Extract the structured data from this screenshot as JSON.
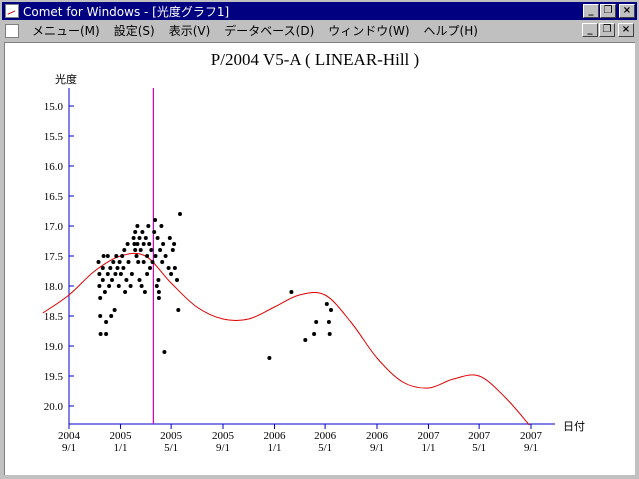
{
  "window": {
    "title": "Comet for Windows - [光度グラフ1]",
    "icon": "app-chart-icon",
    "controls": [
      "minimize",
      "restore",
      "close"
    ]
  },
  "menubar": {
    "doc_icon": "document-chart-icon",
    "items": [
      {
        "label": "メニュー(M)"
      },
      {
        "label": "設定(S)"
      },
      {
        "label": "表示(V)"
      },
      {
        "label": "データベース(D)"
      },
      {
        "label": "ウィンドウ(W)"
      },
      {
        "label": "ヘルプ(H)"
      }
    ]
  },
  "colors": {
    "titlebar": "#000080",
    "curve": "#e00000",
    "marker_line": "#cc00cc",
    "axis": "#0000cc",
    "points": "#000000"
  },
  "chart_data": {
    "type": "scatter",
    "title": "P/2004 V5-A ( LINEAR-Hill )",
    "ylabel": "光度",
    "xlabel": "日付",
    "y_inverted": true,
    "ylim": [
      14.7,
      20.3
    ],
    "y_ticks": [
      "15.0",
      "15.5",
      "16.0",
      "16.5",
      "17.0",
      "17.5",
      "18.0",
      "18.5",
      "19.0",
      "19.5",
      "20.0"
    ],
    "x_tick_dates": [
      "2004-09-01",
      "2005-01-01",
      "2005-05-01",
      "2005-09-01",
      "2006-01-01",
      "2006-05-01",
      "2006-09-01",
      "2007-01-01",
      "2007-05-01",
      "2007-09-01"
    ],
    "x_ticks": [
      {
        "year": "2004",
        "md": "9/1"
      },
      {
        "year": "2005",
        "md": "1/1"
      },
      {
        "year": "2005",
        "md": "5/1"
      },
      {
        "year": "2005",
        "md": "9/1"
      },
      {
        "year": "2006",
        "md": "1/1"
      },
      {
        "year": "2006",
        "md": "5/1"
      },
      {
        "year": "2006",
        "md": "9/1"
      },
      {
        "year": "2007",
        "md": "1/1"
      },
      {
        "year": "2007",
        "md": "5/1"
      },
      {
        "year": "2007",
        "md": "9/1"
      }
    ],
    "marker_date": "2005-03-20",
    "curve": [
      {
        "x": "2004-07-01",
        "y": 18.45
      },
      {
        "x": "2004-09-01",
        "y": 18.15
      },
      {
        "x": "2004-11-01",
        "y": 17.75
      },
      {
        "x": "2005-01-01",
        "y": 17.5
      },
      {
        "x": "2005-03-01",
        "y": 17.5
      },
      {
        "x": "2005-05-01",
        "y": 17.95
      },
      {
        "x": "2005-07-01",
        "y": 18.35
      },
      {
        "x": "2005-09-01",
        "y": 18.55
      },
      {
        "x": "2005-11-01",
        "y": 18.55
      },
      {
        "x": "2006-01-01",
        "y": 18.35
      },
      {
        "x": "2006-03-01",
        "y": 18.15
      },
      {
        "x": "2006-05-01",
        "y": 18.15
      },
      {
        "x": "2006-07-01",
        "y": 18.6
      },
      {
        "x": "2006-09-01",
        "y": 19.2
      },
      {
        "x": "2006-11-01",
        "y": 19.6
      },
      {
        "x": "2007-01-01",
        "y": 19.7
      },
      {
        "x": "2007-03-01",
        "y": 19.55
      },
      {
        "x": "2007-05-01",
        "y": 19.5
      },
      {
        "x": "2007-07-01",
        "y": 19.85
      },
      {
        "x": "2007-09-01",
        "y": 20.35
      }
    ],
    "points": [
      {
        "x": "2004-11-10",
        "y": 17.6
      },
      {
        "x": "2004-11-12",
        "y": 17.8
      },
      {
        "x": "2004-11-12",
        "y": 18.0
      },
      {
        "x": "2004-11-14",
        "y": 18.2
      },
      {
        "x": "2004-11-14",
        "y": 18.5
      },
      {
        "x": "2004-11-15",
        "y": 18.8
      },
      {
        "x": "2004-11-20",
        "y": 17.7
      },
      {
        "x": "2004-11-20",
        "y": 17.9
      },
      {
        "x": "2004-11-22",
        "y": 17.5
      },
      {
        "x": "2004-11-25",
        "y": 18.1
      },
      {
        "x": "2004-11-28",
        "y": 18.8
      },
      {
        "x": "2004-11-28",
        "y": 18.6
      },
      {
        "x": "2004-12-02",
        "y": 17.8
      },
      {
        "x": "2004-12-02",
        "y": 17.5
      },
      {
        "x": "2004-12-05",
        "y": 18.0
      },
      {
        "x": "2004-12-08",
        "y": 17.7
      },
      {
        "x": "2004-12-10",
        "y": 18.5
      },
      {
        "x": "2004-12-12",
        "y": 17.9
      },
      {
        "x": "2004-12-15",
        "y": 17.6
      },
      {
        "x": "2004-12-18",
        "y": 18.4
      },
      {
        "x": "2004-12-20",
        "y": 17.8
      },
      {
        "x": "2004-12-22",
        "y": 17.5
      },
      {
        "x": "2004-12-25",
        "y": 17.7
      },
      {
        "x": "2004-12-28",
        "y": 18.0
      },
      {
        "x": "2004-12-30",
        "y": 17.6
      },
      {
        "x": "2005-01-02",
        "y": 17.8
      },
      {
        "x": "2005-01-05",
        "y": 17.5
      },
      {
        "x": "2005-01-08",
        "y": 17.7
      },
      {
        "x": "2005-01-10",
        "y": 17.4
      },
      {
        "x": "2005-01-12",
        "y": 18.1
      },
      {
        "x": "2005-01-15",
        "y": 17.9
      },
      {
        "x": "2005-01-18",
        "y": 17.3
      },
      {
        "x": "2005-01-20",
        "y": 17.6
      },
      {
        "x": "2005-01-25",
        "y": 18.0
      },
      {
        "x": "2005-01-28",
        "y": 17.8
      },
      {
        "x": "2005-02-01",
        "y": 17.2
      },
      {
        "x": "2005-02-03",
        "y": 17.3
      },
      {
        "x": "2005-02-05",
        "y": 17.1
      },
      {
        "x": "2005-02-05",
        "y": 17.4
      },
      {
        "x": "2005-02-08",
        "y": 17.5
      },
      {
        "x": "2005-02-10",
        "y": 17.0
      },
      {
        "x": "2005-02-10",
        "y": 17.3
      },
      {
        "x": "2005-02-12",
        "y": 17.6
      },
      {
        "x": "2005-02-15",
        "y": 17.2
      },
      {
        "x": "2005-02-15",
        "y": 17.9
      },
      {
        "x": "2005-02-18",
        "y": 17.4
      },
      {
        "x": "2005-02-20",
        "y": 18.0
      },
      {
        "x": "2005-02-22",
        "y": 17.1
      },
      {
        "x": "2005-02-25",
        "y": 17.3
      },
      {
        "x": "2005-02-25",
        "y": 17.6
      },
      {
        "x": "2005-02-28",
        "y": 18.1
      },
      {
        "x": "2005-03-02",
        "y": 17.2
      },
      {
        "x": "2005-03-05",
        "y": 17.5
      },
      {
        "x": "2005-03-05",
        "y": 17.8
      },
      {
        "x": "2005-03-08",
        "y": 17.0
      },
      {
        "x": "2005-03-10",
        "y": 17.3
      },
      {
        "x": "2005-03-12",
        "y": 17.7
      },
      {
        "x": "2005-03-15",
        "y": 17.4
      },
      {
        "x": "2005-03-18",
        "y": 17.6
      },
      {
        "x": "2005-03-22",
        "y": 17.1
      },
      {
        "x": "2005-03-24",
        "y": 16.9
      },
      {
        "x": "2005-03-25",
        "y": 17.5
      },
      {
        "x": "2005-03-28",
        "y": 18.0
      },
      {
        "x": "2005-03-30",
        "y": 17.2
      },
      {
        "x": "2005-04-01",
        "y": 17.9
      },
      {
        "x": "2005-04-02",
        "y": 18.1
      },
      {
        "x": "2005-04-02",
        "y": 18.2
      },
      {
        "x": "2005-04-05",
        "y": 17.4
      },
      {
        "x": "2005-04-08",
        "y": 17.0
      },
      {
        "x": "2005-04-10",
        "y": 17.6
      },
      {
        "x": "2005-04-12",
        "y": 17.3
      },
      {
        "x": "2005-04-15",
        "y": 19.1
      },
      {
        "x": "2005-04-18",
        "y": 17.5
      },
      {
        "x": "2005-04-25",
        "y": 17.7
      },
      {
        "x": "2005-04-28",
        "y": 17.2
      },
      {
        "x": "2005-05-01",
        "y": 17.8
      },
      {
        "x": "2005-05-05",
        "y": 17.4
      },
      {
        "x": "2005-05-08",
        "y": 17.3
      },
      {
        "x": "2005-05-10",
        "y": 17.7
      },
      {
        "x": "2005-05-15",
        "y": 17.9
      },
      {
        "x": "2005-05-18",
        "y": 18.4
      },
      {
        "x": "2005-05-22",
        "y": 16.8
      },
      {
        "x": "2005-12-20",
        "y": 19.2
      },
      {
        "x": "2006-02-10",
        "y": 18.1
      },
      {
        "x": "2006-03-15",
        "y": 18.9
      },
      {
        "x": "2006-04-05",
        "y": 18.8
      },
      {
        "x": "2006-04-10",
        "y": 18.6
      },
      {
        "x": "2006-05-05",
        "y": 18.3
      },
      {
        "x": "2006-05-10",
        "y": 18.6
      },
      {
        "x": "2006-05-12",
        "y": 18.8
      },
      {
        "x": "2006-05-15",
        "y": 18.4
      }
    ]
  }
}
